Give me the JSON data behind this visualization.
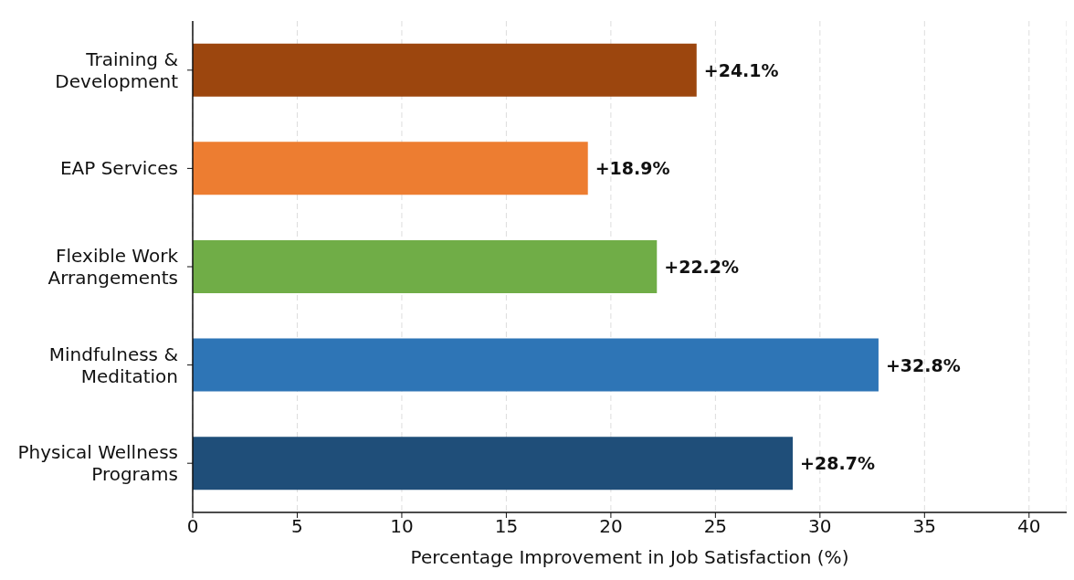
{
  "chart_data": {
    "type": "bar",
    "orientation": "horizontal",
    "xlabel": "Percentage Improvement in Job Satisfaction (%)",
    "categories": [
      "Training & Development",
      "EAP Services",
      "Flexible Work Arrangements",
      "Mindfulness & Meditation",
      "Physical Wellness Programs"
    ],
    "values": [
      24.1,
      18.9,
      22.2,
      32.8,
      28.7
    ],
    "colors": [
      "#9c460e",
      "#ed7d31",
      "#70ad47",
      "#2e75b6",
      "#1f4e79"
    ],
    "value_labels": [
      "+24.1%",
      "+18.9%",
      "+22.2%",
      "+32.8%",
      "+28.7%"
    ],
    "xlim": [
      0,
      41.8
    ],
    "xticks": [
      0,
      5,
      10,
      15,
      20,
      25,
      30,
      35,
      40
    ],
    "grid": "x"
  }
}
